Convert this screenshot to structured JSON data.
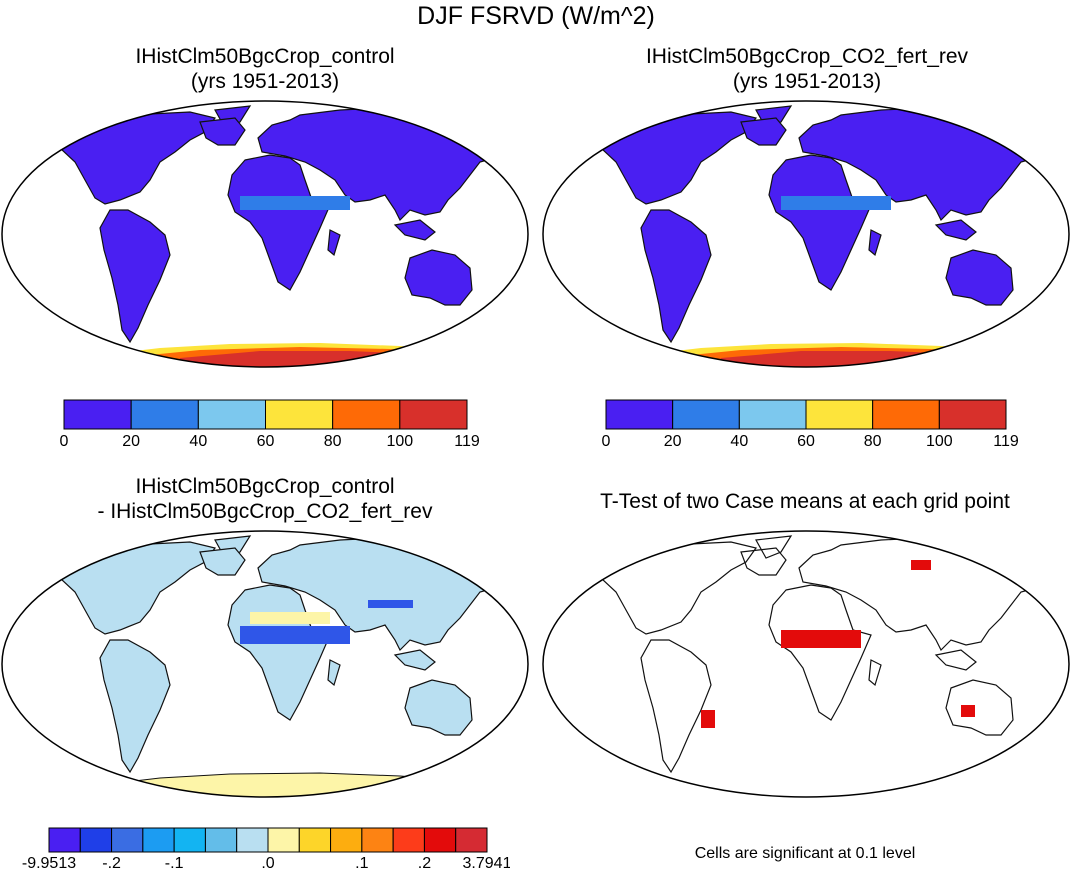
{
  "main_title": "DJF FSRVD (W/m^2)",
  "panels": [
    {
      "title_line1": "IHistClm50BgcCrop_control",
      "title_line2": "(yrs 1951-2013)"
    },
    {
      "title_line1": "IHistClm50BgcCrop_CO2_fert_rev",
      "title_line2": "(yrs 1951-2013)"
    },
    {
      "title_line1": "IHistClm50BgcCrop_control",
      "title_line2": "- IHistClm50BgcCrop_CO2_fert_rev"
    },
    {
      "title_line1": "T-Test of two Case means at each grid point",
      "title_line2": ""
    }
  ],
  "footnote": "Cells are significant at 0.1 level",
  "colorbar_top": {
    "colors": [
      "#4a1ff2",
      "#2f7de8",
      "#7cc8ee",
      "#fde43b",
      "#fe6a06",
      "#d8302b"
    ],
    "labels": [
      "0",
      "20",
      "40",
      "60",
      "80",
      "100",
      "119"
    ]
  },
  "colorbar_diff": {
    "colors": [
      "#4a1ff2",
      "#1f3fe8",
      "#3a6de3",
      "#1c9cf2",
      "#13b4f2",
      "#63bde9",
      "#b9dff1",
      "#fdf5a8",
      "#fdd529",
      "#fdad0f",
      "#fd8313",
      "#fd3c1a",
      "#e30b0b",
      "#d52b33"
    ],
    "labels": [
      "-9.9513",
      "-.2",
      "-.1",
      ".0",
      ".1",
      ".2",
      "3.7941"
    ]
  },
  "map_colors": {
    "land_main": "#4a1ff2",
    "band_light": "#2f7de8",
    "antarctic_outer": "#fde43b",
    "antarctic_mid": "#fe6a06",
    "antarctic_inner": "#d8302b",
    "diff_land": "#b9dff1",
    "diff_warm": "#fdf5a8",
    "diff_neg": "#2f56e8",
    "significant": "#e30b0b"
  }
}
